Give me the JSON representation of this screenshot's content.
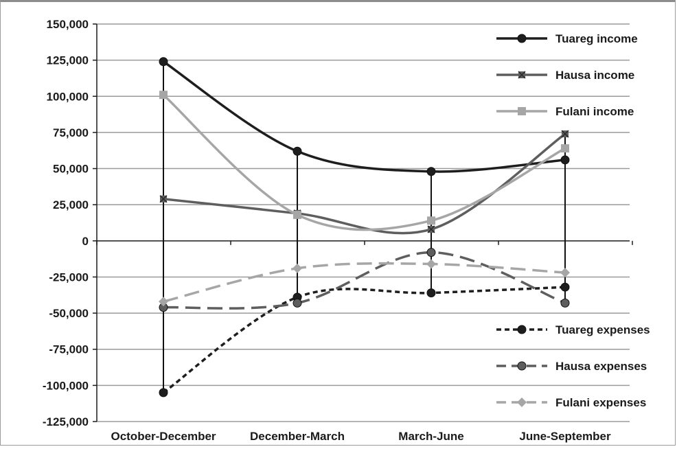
{
  "chart_data": {
    "type": "line",
    "title": "",
    "xlabel": "",
    "ylabel": "",
    "categories": [
      "October-December",
      "December-March",
      "March-June",
      "June-September"
    ],
    "ylim": [
      -125000,
      150000
    ],
    "yticks": [
      150000,
      125000,
      100000,
      75000,
      50000,
      25000,
      0,
      -25000,
      -50000,
      -75000,
      -100000,
      -125000
    ],
    "ytick_labels": [
      "150,000",
      "125,000",
      "100,000",
      "75,000",
      "50,000",
      "25,000",
      "0",
      "-25,000",
      "-50,000",
      "-75,000",
      "-100,000",
      "-125,000"
    ],
    "grid": true,
    "drop_lines": true,
    "legend_placement": "right",
    "series": [
      {
        "name": "Tuareg income",
        "values": [
          124000,
          62000,
          48000,
          56000
        ],
        "color": "#1e1e1e",
        "dash": "solid",
        "marker": "circle",
        "smooth": true
      },
      {
        "name": "Hausa income",
        "values": [
          29000,
          19000,
          8000,
          74000
        ],
        "color": "#5e5e5e",
        "dash": "solid",
        "marker": "x-square",
        "smooth": true
      },
      {
        "name": "Fulani income",
        "values": [
          101000,
          18000,
          14000,
          64000
        ],
        "color": "#a6a6a6",
        "dash": "solid",
        "marker": "square",
        "smooth": true
      },
      {
        "name": "Tuareg expenses",
        "values": [
          -105000,
          -39000,
          -36000,
          -32000
        ],
        "color": "#1e1e1e",
        "dash": "short",
        "marker": "circle",
        "smooth": true
      },
      {
        "name": "Hausa expenses",
        "values": [
          -46000,
          -43000,
          -8000,
          -43000
        ],
        "color": "#5e5e5e",
        "dash": "long",
        "marker": "circle",
        "smooth": true
      },
      {
        "name": "Fulani expenses",
        "values": [
          -42000,
          -19000,
          -16000,
          -22000
        ],
        "color": "#a6a6a6",
        "dash": "long",
        "marker": "diamond",
        "smooth": true
      }
    ]
  }
}
